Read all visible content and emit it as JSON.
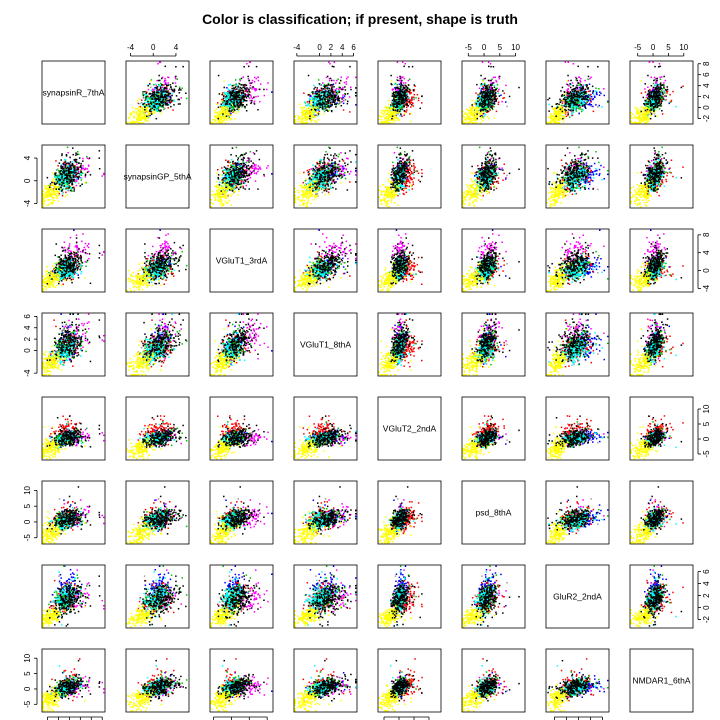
{
  "title": "Color is classification; if present, shape is truth",
  "chart_data": {
    "type": "scatter",
    "subtype": "pairs-matrix",
    "title": "Color is classification; if present, shape is truth",
    "variables": [
      {
        "name": "synapsinR_7thA",
        "lim": [
          -3,
          8.5
        ],
        "ticks": [
          -2,
          0,
          2,
          4,
          6,
          8
        ]
      },
      {
        "name": "synapsinGP_5thA",
        "lim": [
          -4.8,
          6.3
        ],
        "ticks": [
          -4,
          0,
          4
        ]
      },
      {
        "name": "VGluT1_3rdA",
        "lim": [
          -4.8,
          9.3
        ],
        "ticks": [
          -4,
          0,
          4,
          8
        ]
      },
      {
        "name": "VGluT1_8thA",
        "lim": [
          -4.5,
          6.6
        ],
        "ticks": [
          -4,
          0,
          2,
          4,
          6
        ]
      },
      {
        "name": "VGluT2_2ndA",
        "lim": [
          -7,
          14
        ],
        "ticks": [
          -5,
          0,
          5,
          10
        ]
      },
      {
        "name": "psd_8thA",
        "lim": [
          -7,
          13
        ],
        "ticks": [
          -5,
          0,
          5,
          10
        ]
      },
      {
        "name": "GluR2_2ndA",
        "lim": [
          -3.4,
          7.1
        ],
        "ticks": [
          -2,
          0,
          2,
          4,
          6
        ]
      },
      {
        "name": "NMDAR1_6thA",
        "lim": [
          -7.5,
          13
        ],
        "ticks": [
          -5,
          0,
          5,
          10
        ]
      }
    ],
    "top_axis_columns": [
      1,
      3,
      5,
      7
    ],
    "bottom_axis_columns": [
      0,
      2,
      4,
      6
    ],
    "left_axis_rows": [
      1,
      3,
      5,
      7
    ],
    "right_axis_rows": [
      0,
      2,
      4,
      6
    ],
    "classes": [
      {
        "color": "#ffff00",
        "center": [
          -1.4,
          -2.2,
          -2.0,
          -2.2,
          -3.2,
          -3.5,
          -1.4,
          -3.3
        ],
        "spread": [
          1.0,
          1.1,
          1.3,
          1.1,
          1.6,
          1.8,
          0.7,
          1.7
        ]
      },
      {
        "color": "#00ffff",
        "center": [
          1.4,
          0.6,
          0.0,
          0.2,
          0.3,
          0.3,
          1.6,
          0.3
        ],
        "spread": [
          1.0,
          1.1,
          1.1,
          1.1,
          1.0,
          1.3,
          1.0,
          1.1
        ]
      },
      {
        "color": "#000000",
        "center": [
          1.9,
          1.4,
          1.3,
          1.3,
          0.5,
          1.1,
          1.4,
          0.6
        ],
        "spread": [
          1.4,
          1.5,
          1.6,
          1.5,
          1.5,
          1.6,
          1.4,
          1.6
        ]
      },
      {
        "color": "#00c000",
        "center": [
          1.5,
          1.1,
          0.6,
          0.8,
          0.3,
          0.9,
          1.6,
          0.5
        ],
        "spread": [
          1.1,
          1.2,
          1.3,
          1.2,
          1.2,
          1.4,
          1.2,
          1.3
        ]
      },
      {
        "color": "#ff0000",
        "center": [
          1.4,
          0.7,
          0.3,
          0.4,
          2.8,
          1.4,
          1.5,
          1.2
        ],
        "spread": [
          1.2,
          1.3,
          1.3,
          1.3,
          1.6,
          1.9,
          1.3,
          2.0
        ]
      },
      {
        "color": "#0000ff",
        "center": [
          1.5,
          1.1,
          0.4,
          0.8,
          0.6,
          1.0,
          3.3,
          0.7
        ],
        "spread": [
          1.0,
          1.2,
          1.2,
          1.2,
          1.2,
          1.3,
          1.2,
          1.2
        ]
      },
      {
        "color": "#ff00ff",
        "center": [
          3.2,
          1.8,
          4.8,
          2.6,
          0.5,
          1.5,
          1.4,
          0.8
        ],
        "spread": [
          1.3,
          1.3,
          1.6,
          1.6,
          1.2,
          1.5,
          1.2,
          1.4
        ]
      },
      {
        "color": "#9e9e9e",
        "center": [
          1.0,
          0.4,
          0.0,
          0.2,
          0.0,
          0.3,
          1.0,
          0.1
        ],
        "spread": [
          1.1,
          1.2,
          1.2,
          1.2,
          1.1,
          1.3,
          1.1,
          1.2
        ]
      }
    ],
    "grid": false,
    "legend": "none"
  }
}
